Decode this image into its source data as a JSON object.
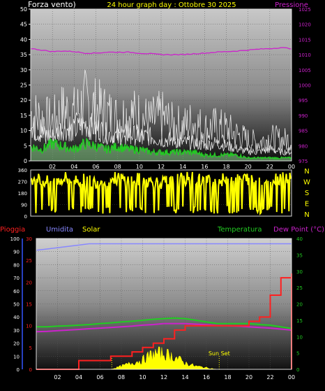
{
  "colors": {
    "wind": "#ffffff",
    "gust": "#ffffff",
    "wind_green": "#22cc22",
    "pressure": "#cc22cc",
    "direction": "#ffff00",
    "rain": "#ff2020",
    "humidity": "#8888ff",
    "solar": "#ffff00",
    "temperature": "#22cc22",
    "dewpoint": "#cc22cc"
  },
  "chart_data": [
    {
      "type": "line",
      "title": "24 hour graph day : Ottobre 30 2025",
      "ylabel": "Forza vento)",
      "y2label": "Pressione",
      "ylim": [
        0,
        50
      ],
      "y2lim": [
        975,
        1025
      ],
      "yticks": [
        "0",
        "5",
        "10",
        "15",
        "20",
        "25",
        "30",
        "35",
        "40",
        "45",
        "50"
      ],
      "y2ticks": [
        "975",
        "980",
        "985",
        "990",
        "995",
        "1000",
        "1005",
        "1010",
        "1015",
        "1020",
        "1025"
      ],
      "xticks": [
        "02",
        "04",
        "06",
        "08",
        "10",
        "12",
        "14",
        "16",
        "18",
        "20",
        "22",
        "00"
      ],
      "x": [
        0,
        1,
        2,
        3,
        4,
        5,
        6,
        7,
        8,
        9,
        10,
        11,
        12,
        13,
        14,
        15,
        16,
        17,
        18,
        19,
        20,
        21,
        22,
        23,
        24
      ],
      "series": [
        {
          "key": "gust",
          "values": [
            18,
            16,
            15,
            19,
            18,
            22,
            20,
            18,
            16,
            18,
            17,
            15,
            17,
            14,
            13,
            15,
            12,
            13,
            12,
            10,
            8,
            7,
            9,
            8,
            8
          ]
        },
        {
          "key": "wind",
          "values": [
            11,
            9,
            8,
            11,
            10,
            12,
            11,
            9,
            8,
            9,
            8,
            8,
            7,
            7,
            6,
            6,
            5,
            6,
            5,
            4,
            3,
            3,
            4,
            3,
            3
          ]
        },
        {
          "key": "wind_green",
          "values": [
            5,
            4,
            6,
            5,
            4,
            6,
            5,
            4,
            5,
            4,
            4,
            3,
            3,
            3,
            3,
            3,
            2,
            2,
            2,
            2,
            1,
            1,
            1,
            1,
            1
          ]
        },
        {
          "key": "pressure",
          "values": [
            1012,
            1011.5,
            1011,
            1011.2,
            1011,
            1010.5,
            1010.5,
            1010.8,
            1010.8,
            1010.8,
            1010.5,
            1010.3,
            1010,
            1010,
            1010,
            1010.3,
            1010.5,
            1010.8,
            1011,
            1011.2,
            1011.5,
            1011.8,
            1012,
            1012.3,
            1012
          ]
        }
      ]
    },
    {
      "type": "bar",
      "yticks": [
        "0",
        "90",
        "180",
        "270",
        "360"
      ],
      "ylim": [
        0,
        360
      ],
      "compass_labels": [
        "N",
        "W",
        "S",
        "E",
        "N"
      ],
      "x": [
        0,
        1,
        2,
        3,
        4,
        5,
        6,
        7,
        8,
        9,
        10,
        11,
        12,
        13,
        14,
        15,
        16,
        17,
        18,
        19,
        20,
        21,
        22,
        23,
        24
      ],
      "series": [
        {
          "key": "direction",
          "values": [
            330,
            300,
            280,
            320,
            310,
            300,
            290,
            300,
            320,
            300,
            310,
            290,
            280,
            300,
            310,
            320,
            300,
            290,
            310,
            300,
            320,
            310,
            300,
            330,
            340
          ]
        }
      ]
    },
    {
      "type": "line",
      "legend": [
        {
          "key": "rain",
          "label": "Pioggia"
        },
        {
          "key": "humidity",
          "label": "Umidita"
        },
        {
          "key": "solar",
          "label": "Solar"
        },
        {
          "key": "temperature",
          "label": "Temperatura"
        },
        {
          "key": "dewpoint",
          "label": "Dew Point (°C)"
        }
      ],
      "yticks_outer": [
        "0",
        "10",
        "20",
        "30",
        "40",
        "50",
        "60",
        "70",
        "80",
        "90",
        "100"
      ],
      "yticks_inner": [
        "0",
        "5",
        "10",
        "15",
        "20",
        "25",
        "30"
      ],
      "yticks_right": [
        "0",
        "5",
        "10",
        "15",
        "20",
        "25",
        "30",
        "35",
        "40"
      ],
      "xticks": [
        "02",
        "04",
        "06",
        "08",
        "10",
        "12",
        "14",
        "16",
        "18",
        "20",
        "22",
        "00"
      ],
      "annotation": "Sun Set",
      "x": [
        0,
        1,
        2,
        3,
        4,
        5,
        6,
        7,
        8,
        9,
        10,
        11,
        12,
        13,
        14,
        15,
        16,
        17,
        18,
        19,
        20,
        21,
        22,
        23,
        24
      ],
      "series": [
        {
          "key": "humidity",
          "values": [
            91,
            92,
            93,
            94,
            95,
            96,
            96,
            96,
            96,
            96,
            96,
            96,
            96,
            96,
            96,
            96,
            96,
            96,
            96,
            96,
            96,
            96,
            96,
            96,
            96
          ]
        },
        {
          "key": "rain",
          "values": [
            0,
            0,
            0,
            0,
            2,
            2,
            2,
            3,
            3,
            4,
            5,
            6,
            7,
            9,
            10,
            10,
            10,
            10,
            10,
            10,
            11,
            12,
            17,
            21,
            22
          ]
        },
        {
          "key": "temperature",
          "values": [
            13,
            13,
            13.2,
            13.3,
            13.5,
            13.7,
            14,
            14.2,
            14.5,
            14.7,
            15,
            15.3,
            15.5,
            15.7,
            15.5,
            15,
            14.5,
            14,
            14,
            14,
            14,
            13.7,
            13.5,
            13,
            12.5
          ]
        },
        {
          "key": "dewpoint",
          "values": [
            11.5,
            11.6,
            11.8,
            12,
            12.2,
            12.4,
            12.6,
            12.8,
            13,
            13.2,
            13.5,
            13.7,
            14,
            14,
            14,
            13.8,
            13.6,
            13.4,
            13.3,
            13.2,
            13,
            12.8,
            12.6,
            12.3,
            12
          ]
        },
        {
          "key": "solar",
          "values": [
            0,
            0,
            0,
            0,
            0,
            0,
            0,
            0,
            1,
            2,
            3,
            5,
            5,
            4,
            2,
            1,
            0.5,
            0,
            0,
            0,
            0,
            0,
            0,
            0,
            0
          ]
        }
      ]
    }
  ]
}
